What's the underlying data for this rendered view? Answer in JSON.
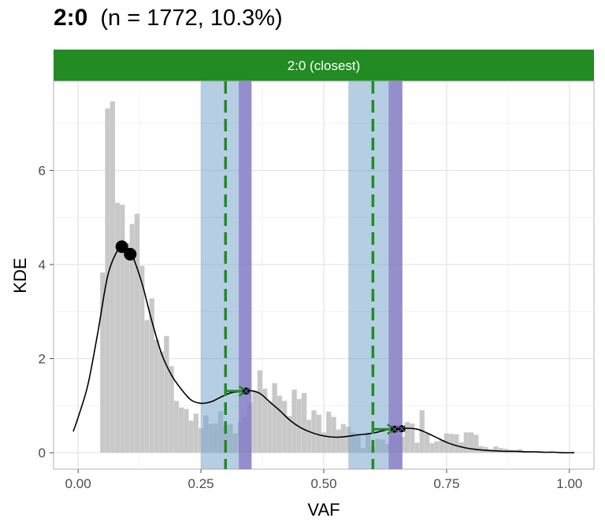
{
  "title": {
    "main": "2:0",
    "sub": "(n = 1772, 10.3%)"
  },
  "colors": {
    "strip": "#228B22",
    "fit_line": "#228B22",
    "band": "#7aa6cc",
    "overlap_band": "#8a78c4",
    "histogram": "#c8c8c8",
    "density": "#000000"
  },
  "chart_data": {
    "type": "histogram",
    "facet_label": "2:0 (closest)",
    "xlabel": "VAF",
    "ylabel": "KDE",
    "xlim": [
      -0.05,
      1.05
    ],
    "ylim": [
      -0.35,
      7.9
    ],
    "grid": true,
    "x_ticks": [
      {
        "value": 0.0,
        "label": "0.00"
      },
      {
        "value": 0.25,
        "label": "0.25"
      },
      {
        "value": 0.5,
        "label": "0.50"
      },
      {
        "value": 0.75,
        "label": "0.75"
      },
      {
        "value": 1.0,
        "label": "1.00"
      }
    ],
    "y_ticks": [
      {
        "value": 0,
        "label": "0"
      },
      {
        "value": 2,
        "label": "2"
      },
      {
        "value": 4,
        "label": "4"
      },
      {
        "value": 6,
        "label": "6"
      }
    ],
    "histogram": {
      "bin_width": 0.01,
      "bin_start": 0.045,
      "counts": [
        3.83,
        7.32,
        7.47,
        5.31,
        5.27,
        4.46,
        4.86,
        5.08,
        3.97,
        2.82,
        3.28,
        2.4,
        2.15,
        2.48,
        1.84,
        1.1,
        0.96,
        0.93,
        0.68,
        0.83,
        0.52,
        0.79,
        0.61,
        0.62,
        0.88,
        0.58,
        0.61,
        0.41,
        0.64,
        0.76,
        1.07,
        1.31,
        1.75,
        1.36,
        1.09,
        1.48,
        1.21,
        1.1,
        0.78,
        1.34,
        1.14,
        1.27,
        0.7,
        0.9,
        0.81,
        0.43,
        0.87,
        0.76,
        0.49,
        0.61,
        0.55,
        0.43,
        0.4,
        0.1,
        0.42,
        0.12,
        0.29,
        0.28,
        0.19,
        0.52,
        0.37,
        0.34,
        0.65,
        0.62,
        0.21,
        0.9,
        0.41,
        0.2,
        0.24,
        0.26,
        0.41,
        0.4,
        0.39,
        0.22,
        0.43,
        0.43,
        0.38,
        0.14,
        0.12,
        0.07,
        0.13,
        0.1,
        0.08,
        0.06,
        0.05,
        0.07,
        0.02,
        0.02
      ]
    },
    "density": {
      "x": [
        -0.01,
        0.0,
        0.02,
        0.04,
        0.06,
        0.08,
        0.09,
        0.1,
        0.11,
        0.13,
        0.15,
        0.17,
        0.19,
        0.21,
        0.23,
        0.25,
        0.27,
        0.29,
        0.31,
        0.33,
        0.35,
        0.37,
        0.39,
        0.41,
        0.43,
        0.45,
        0.47,
        0.49,
        0.51,
        0.53,
        0.55,
        0.57,
        0.59,
        0.61,
        0.63,
        0.65,
        0.67,
        0.69,
        0.71,
        0.73,
        0.75,
        0.77,
        0.79,
        0.81,
        0.83,
        0.85,
        0.87,
        0.89,
        0.91,
        0.93,
        0.95,
        0.97,
        0.99,
        1.01
      ],
      "y": [
        0.45,
        0.75,
        1.45,
        2.55,
        3.75,
        4.3,
        4.38,
        4.35,
        4.2,
        3.6,
        2.8,
        2.1,
        1.65,
        1.35,
        1.12,
        1.05,
        1.08,
        1.18,
        1.27,
        1.3,
        1.32,
        1.26,
        1.08,
        0.9,
        0.7,
        0.55,
        0.45,
        0.38,
        0.34,
        0.33,
        0.35,
        0.38,
        0.4,
        0.44,
        0.49,
        0.51,
        0.52,
        0.5,
        0.42,
        0.32,
        0.22,
        0.15,
        0.1,
        0.07,
        0.05,
        0.04,
        0.03,
        0.03,
        0.02,
        0.02,
        0.01,
        0.01,
        0.0,
        0.0
      ]
    },
    "peaks": [
      {
        "x": 0.089,
        "y": 4.38,
        "size": "large"
      },
      {
        "x": 0.106,
        "y": 4.22,
        "size": "large"
      },
      {
        "x": 0.342,
        "y": 1.31,
        "size": "small"
      },
      {
        "x": 0.644,
        "y": 0.5,
        "size": "small"
      },
      {
        "x": 0.659,
        "y": 0.51,
        "size": "small"
      }
    ],
    "bands": [
      {
        "xmin": 0.25,
        "xmax": 0.353,
        "type": "expected"
      },
      {
        "xmin": 0.327,
        "xmax": 0.353,
        "type": "overlap"
      },
      {
        "xmin": 0.55,
        "xmax": 0.66,
        "type": "expected"
      },
      {
        "xmin": 0.632,
        "xmax": 0.66,
        "type": "overlap"
      }
    ],
    "vlines": [
      0.3,
      0.6
    ],
    "arrows": [
      {
        "from_x": 0.3,
        "to_x": 0.342,
        "y": 1.31
      },
      {
        "from_x": 0.6,
        "to_x": 0.644,
        "y": 0.5
      }
    ]
  }
}
